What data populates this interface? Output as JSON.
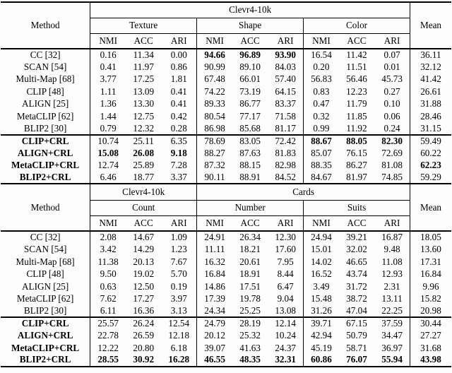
{
  "tables": [
    {
      "header": {
        "method_label": "Method",
        "mean_label": "Mean",
        "spans": [
          {
            "label": "Clevr4-10k",
            "groups": 3
          }
        ],
        "groups": [
          "Texture",
          "Shape",
          "Color"
        ],
        "metrics": [
          "NMI",
          "ACC",
          "ARI"
        ]
      },
      "sections": [
        {
          "name": "baselines",
          "rows": [
            {
              "method": "CC [32]",
              "method_bold": false,
              "values": [
                "0.16",
                "11.34",
                "0.00",
                "94.66",
                "96.89",
                "93.90",
                "16.54",
                "11.42",
                "0.07"
              ],
              "bold": [
                3,
                4,
                5
              ],
              "mean": "36.11",
              "mean_bold": false
            },
            {
              "method": "SCAN [54]",
              "method_bold": false,
              "values": [
                "0.41",
                "11.97",
                "0.86",
                "90.99",
                "89.10",
                "84.03",
                "0.20",
                "11.51",
                "0.01"
              ],
              "bold": [],
              "mean": "32.12",
              "mean_bold": false
            },
            {
              "method": "Multi-Map [68]",
              "method_bold": false,
              "values": [
                "3.77",
                "17.25",
                "1.81",
                "67.48",
                "66.01",
                "57.40",
                "56.83",
                "56.46",
                "45.73"
              ],
              "bold": [],
              "mean": "41.42",
              "mean_bold": false
            },
            {
              "method": "CLIP [48]",
              "method_bold": false,
              "values": [
                "1.11",
                "13.09",
                "0.41",
                "74.22",
                "73.19",
                "64.15",
                "0.83",
                "12.23",
                "0.27"
              ],
              "bold": [],
              "mean": "26.61",
              "mean_bold": false
            },
            {
              "method": "ALIGN [25]",
              "method_bold": false,
              "values": [
                "1.36",
                "13.30",
                "0.41",
                "89.33",
                "86.77",
                "83.37",
                "0.47",
                "11.79",
                "0.10"
              ],
              "bold": [],
              "mean": "31.88",
              "mean_bold": false
            },
            {
              "method": "MetaCLIP [62]",
              "method_bold": false,
              "values": [
                "1.44",
                "12.75",
                "0.42",
                "80.54",
                "77.17",
                "71.58",
                "0.32",
                "11.85",
                "0.06"
              ],
              "bold": [],
              "mean": "28.46",
              "mean_bold": false
            },
            {
              "method": "BLIP2 [30]",
              "method_bold": false,
              "values": [
                "0.79",
                "12.32",
                "0.28",
                "86.98",
                "85.68",
                "81.17",
                "0.99",
                "11.92",
                "0.24"
              ],
              "bold": [],
              "mean": "31.15",
              "mean_bold": false
            }
          ]
        },
        {
          "name": "crl",
          "rows": [
            {
              "method": "CLIP+CRL",
              "method_bold": true,
              "values": [
                "10.74",
                "25.11",
                "6.35",
                "78.69",
                "83.05",
                "72.42",
                "88.67",
                "88.05",
                "82.30"
              ],
              "bold": [
                6,
                7,
                8
              ],
              "mean": "59.49",
              "mean_bold": false
            },
            {
              "method": "ALIGN+CRL",
              "method_bold": true,
              "values": [
                "15.08",
                "26.08",
                "9.18",
                "88.27",
                "87.63",
                "81.83",
                "85.07",
                "76.15",
                "72.69"
              ],
              "bold": [
                0,
                1,
                2
              ],
              "mean": "60.22",
              "mean_bold": false
            },
            {
              "method": "MetaCLIP+CRL",
              "method_bold": true,
              "values": [
                "12.74",
                "25.89",
                "7.28",
                "87.32",
                "88.15",
                "82.98",
                "88.35",
                "86.27",
                "81.08"
              ],
              "bold": [],
              "mean": "62.23",
              "mean_bold": true
            },
            {
              "method": "BLIP2+CRL",
              "method_bold": true,
              "values": [
                "6.46",
                "18.77",
                "3.37",
                "90.11",
                "88.91",
                "84.52",
                "84.67",
                "81.97",
                "74.85"
              ],
              "bold": [],
              "mean": "59.29",
              "mean_bold": false
            }
          ]
        }
      ]
    },
    {
      "header": {
        "method_label": "Method",
        "mean_label": "Mean",
        "spans": [
          {
            "label": "Clevr4-10k",
            "groups": 1
          },
          {
            "label": "Cards",
            "groups": 2
          }
        ],
        "groups": [
          "Count",
          "Number",
          "Suits"
        ],
        "metrics": [
          "NMI",
          "ACC",
          "ARI"
        ]
      },
      "sections": [
        {
          "name": "baselines",
          "rows": [
            {
              "method": "CC [32]",
              "method_bold": false,
              "values": [
                "2.08",
                "14.67",
                "1.09",
                "24.91",
                "26.34",
                "12.30",
                "24.94",
                "39.21",
                "16.87"
              ],
              "bold": [],
              "mean": "18.05",
              "mean_bold": false
            },
            {
              "method": "SCAN [54]",
              "method_bold": false,
              "values": [
                "3.42",
                "14.29",
                "1.23",
                "11.11",
                "18.21",
                "17.60",
                "15.01",
                "32.02",
                "9.48"
              ],
              "bold": [],
              "mean": "13.60",
              "mean_bold": false
            },
            {
              "method": "Multi-Map [68]",
              "method_bold": false,
              "values": [
                "11.38",
                "20.13",
                "7.67",
                "16.32",
                "20.61",
                "7.95",
                "14.02",
                "46.65",
                "11.08"
              ],
              "bold": [],
              "mean": "17.31",
              "mean_bold": false
            },
            {
              "method": "CLIP [48]",
              "method_bold": false,
              "values": [
                "9.50",
                "19.02",
                "5.70",
                "16.84",
                "18.91",
                "8.44",
                "16.52",
                "43.74",
                "12.93"
              ],
              "bold": [],
              "mean": "16.84",
              "mean_bold": false
            },
            {
              "method": "ALIGN [25]",
              "method_bold": false,
              "values": [
                "0.63",
                "12.50",
                "0.19",
                "14.86",
                "17.51",
                "6.47",
                "3.49",
                "31.72",
                "2.31"
              ],
              "bold": [],
              "mean": "9.96",
              "mean_bold": false
            },
            {
              "method": "MetaCLIP [62]",
              "method_bold": false,
              "values": [
                "7.62",
                "17.27",
                "3.97",
                "17.39",
                "19.78",
                "9.04",
                "15.48",
                "38.72",
                "13.11"
              ],
              "bold": [],
              "mean": "15.82",
              "mean_bold": false
            },
            {
              "method": "BLIP2 [30]",
              "method_bold": false,
              "values": [
                "6.11",
                "16.36",
                "3.13",
                "24.34",
                "25.25",
                "13.08",
                "31.26",
                "47.04",
                "22.25"
              ],
              "bold": [],
              "mean": "20.98",
              "mean_bold": false
            }
          ]
        },
        {
          "name": "crl",
          "rows": [
            {
              "method": "CLIP+CRL",
              "method_bold": true,
              "values": [
                "25.57",
                "26.24",
                "12.54",
                "24.79",
                "28.19",
                "12.14",
                "39.71",
                "67.15",
                "37.59"
              ],
              "bold": [],
              "mean": "30.44",
              "mean_bold": false
            },
            {
              "method": "ALIGN+CRL",
              "method_bold": true,
              "values": [
                "22.78",
                "26.59",
                "12.18",
                "20.12",
                "25.32",
                "10.24",
                "42.94",
                "50.79",
                "34.47"
              ],
              "bold": [],
              "mean": "27.27",
              "mean_bold": false
            },
            {
              "method": "MetaCLIP+CRL",
              "method_bold": true,
              "values": [
                "12.22",
                "20.80",
                "6.18",
                "39.07",
                "41.63",
                "24.37",
                "45.19",
                "58.71",
                "36.97"
              ],
              "bold": [],
              "mean": "31.68",
              "mean_bold": false
            },
            {
              "method": "BLIP2+CRL",
              "method_bold": true,
              "values": [
                "28.55",
                "30.92",
                "16.28",
                "46.55",
                "48.35",
                "32.31",
                "60.86",
                "76.07",
                "55.94"
              ],
              "bold": [
                0,
                1,
                2,
                3,
                4,
                5,
                6,
                7,
                8
              ],
              "mean": "43.98",
              "mean_bold": true
            }
          ]
        }
      ]
    }
  ]
}
